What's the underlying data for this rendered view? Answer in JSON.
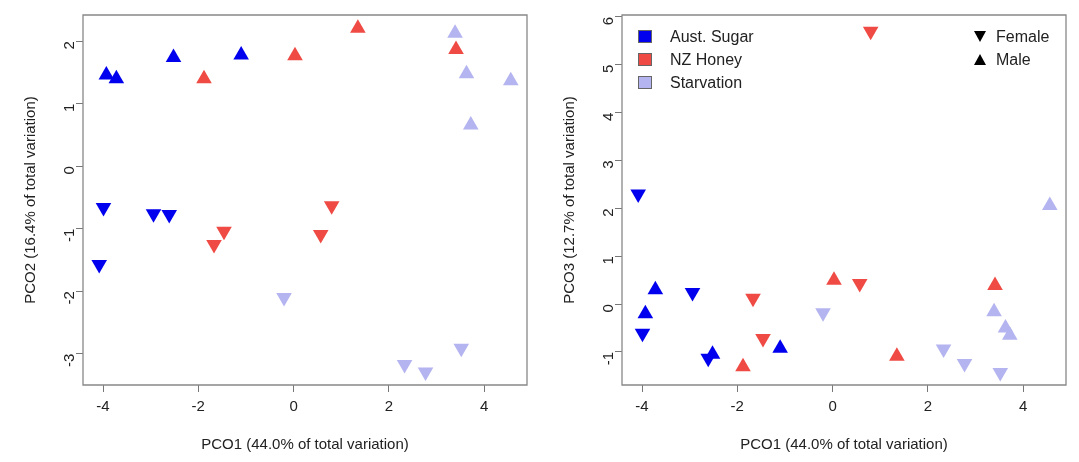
{
  "chart_data": [
    {
      "type": "scatter",
      "xlabel": "PCO1 (44.0% of total variation)",
      "ylabel": "PCO2 (16.4% of total variation)",
      "xlim": [
        -4.42,
        4.9
      ],
      "ylim": [
        -3.5,
        2.42
      ],
      "xticks": [
        -4,
        -2,
        0,
        2,
        4
      ],
      "yticks": [
        -3,
        -2,
        -1,
        0,
        1,
        2
      ],
      "grid": false,
      "legend": false,
      "series": [
        {
          "color": "#0000ee",
          "marker": "triangle-down",
          "x": [
            -3.99,
            -4.08,
            -2.94,
            -2.61
          ],
          "values": [
            -0.66,
            -1.57,
            -0.76,
            -0.77
          ]
        },
        {
          "color": "#0000ee",
          "marker": "triangle",
          "x": [
            -3.93,
            -3.72,
            -2.52,
            -1.1
          ],
          "values": [
            1.46,
            1.4,
            1.74,
            1.78
          ]
        },
        {
          "color": "#ef4a43",
          "marker": "triangle-down",
          "x": [
            -1.46,
            -1.67,
            0.8,
            0.57
          ],
          "values": [
            -1.04,
            -1.25,
            -0.63,
            -1.09
          ]
        },
        {
          "color": "#ef4a43",
          "marker": "triangle",
          "x": [
            -1.88,
            0.03,
            1.35,
            3.41
          ],
          "values": [
            1.4,
            1.77,
            2.21,
            1.87
          ]
        },
        {
          "color": "#b4b4f0",
          "marker": "triangle-down",
          "x": [
            -0.2,
            2.33,
            2.77,
            3.52
          ],
          "values": [
            -2.1,
            -3.17,
            -3.29,
            -2.91
          ]
        },
        {
          "color": "#b4b4f0",
          "marker": "triangle",
          "x": [
            3.39,
            3.63,
            4.56,
            3.72
          ],
          "values": [
            2.13,
            1.48,
            1.37,
            0.66
          ]
        }
      ]
    },
    {
      "type": "scatter",
      "xlabel": "PCO1 (44.0% of total variation)",
      "ylabel": "PCO3 (12.7% of total variation)",
      "xlim": [
        -4.42,
        4.9
      ],
      "ylim": [
        -1.69,
        6.04
      ],
      "xticks": [
        -4,
        -2,
        0,
        2,
        4
      ],
      "yticks": [
        -1,
        0,
        1,
        2,
        3,
        4,
        5,
        6
      ],
      "grid": false,
      "legend": "top left",
      "annotations": [
        "Female",
        "Male"
      ],
      "series": [
        {
          "name": "Aust. Sugar",
          "color": "#0000ee",
          "marker": "triangle-down",
          "x": [
            -3.99,
            -4.08,
            -2.94,
            -2.61
          ],
          "values": [
            -0.61,
            2.3,
            0.24,
            -1.13
          ]
        },
        {
          "color": "#0000ee",
          "marker": "triangle",
          "x": [
            -3.93,
            -3.72,
            -2.52,
            -1.1
          ],
          "values": [
            -0.2,
            0.3,
            -1.05,
            -0.92
          ]
        },
        {
          "name": "NZ Honey",
          "color": "#ef4a43",
          "marker": "triangle-down",
          "x": [
            -1.46,
            -1.67,
            0.8,
            0.57
          ],
          "values": [
            -0.72,
            0.12,
            5.7,
            0.43
          ]
        },
        {
          "color": "#ef4a43",
          "marker": "triangle",
          "x": [
            -1.88,
            0.03,
            1.35,
            3.41
          ],
          "values": [
            -1.31,
            0.5,
            -1.09,
            0.39
          ]
        },
        {
          "name": "Starvation",
          "color": "#b4b4f0",
          "marker": "triangle-down",
          "x": [
            -0.2,
            2.33,
            2.77,
            3.52
          ],
          "values": [
            -0.18,
            -0.94,
            -1.24,
            -1.43
          ]
        },
        {
          "color": "#b4b4f0",
          "marker": "triangle",
          "x": [
            3.39,
            3.63,
            4.56,
            3.72
          ],
          "values": [
            -0.16,
            -0.5,
            2.06,
            -0.65
          ]
        }
      ]
    }
  ]
}
